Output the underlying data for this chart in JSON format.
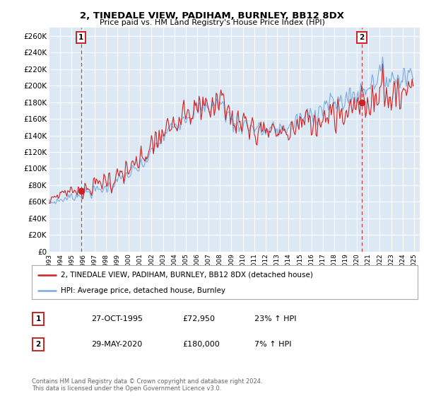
{
  "title": "2, TINEDALE VIEW, PADIHAM, BURNLEY, BB12 8DX",
  "subtitle": "Price paid vs. HM Land Registry's House Price Index (HPI)",
  "ylim": [
    0,
    270000
  ],
  "yticks": [
    0,
    20000,
    40000,
    60000,
    80000,
    100000,
    120000,
    140000,
    160000,
    180000,
    200000,
    220000,
    240000,
    260000
  ],
  "ytick_labels": [
    "£0",
    "£20K",
    "£40K",
    "£60K",
    "£80K",
    "£100K",
    "£120K",
    "£140K",
    "£160K",
    "£180K",
    "£200K",
    "£220K",
    "£240K",
    "£260K"
  ],
  "xlim_start": 1993.0,
  "xlim_end": 2025.5,
  "xtick_years": [
    1993,
    1994,
    1995,
    1996,
    1997,
    1998,
    1999,
    2000,
    2001,
    2002,
    2003,
    2004,
    2005,
    2006,
    2007,
    2008,
    2009,
    2010,
    2011,
    2012,
    2013,
    2014,
    2015,
    2016,
    2017,
    2018,
    2019,
    2020,
    2021,
    2022,
    2023,
    2024,
    2025
  ],
  "background_color": "#dce9f5",
  "grid_color": "#ffffff",
  "hpi_line_color": "#7aaadd",
  "price_line_color": "#cc2222",
  "sale1_date": 1995.82,
  "sale1_price": 72950,
  "sale1_label": "1",
  "sale2_date": 2020.41,
  "sale2_price": 180000,
  "sale2_label": "2",
  "legend_line1": "2, TINEDALE VIEW, PADIHAM, BURNLEY, BB12 8DX (detached house)",
  "legend_line2": "HPI: Average price, detached house, Burnley",
  "annotation1_date": "27-OCT-1995",
  "annotation1_price": "£72,950",
  "annotation1_hpi": "23% ↑ HPI",
  "annotation2_date": "29-MAY-2020",
  "annotation2_price": "£180,000",
  "annotation2_hpi": "7% ↑ HPI",
  "copyright_text": "Contains HM Land Registry data © Crown copyright and database right 2024.\nThis data is licensed under the Open Government Licence v3.0."
}
